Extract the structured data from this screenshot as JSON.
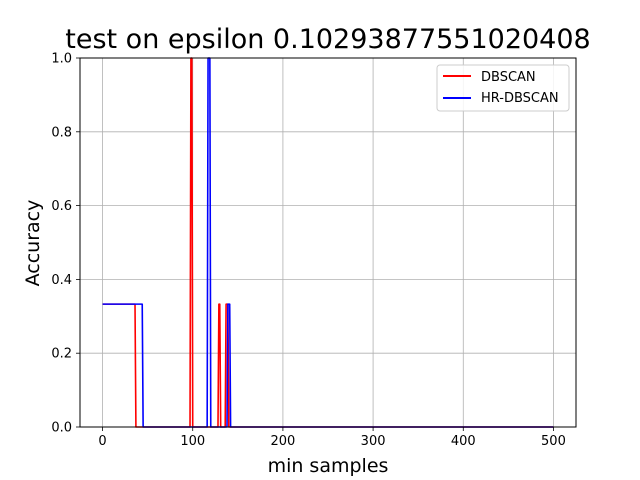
{
  "chart_data": {
    "type": "line",
    "title": "test on epsilon 0.10293877551020408",
    "xlabel": "min samples",
    "ylabel": "Accuracy",
    "xlim": [
      -25,
      525
    ],
    "ylim": [
      0,
      1
    ],
    "xticks": [
      0,
      100,
      200,
      300,
      400,
      500
    ],
    "yticks": [
      0.0,
      0.2,
      0.4,
      0.6,
      0.8,
      1.0
    ],
    "xtick_labels": [
      "0",
      "100",
      "200",
      "300",
      "400",
      "500"
    ],
    "ytick_labels": [
      "0.0",
      "0.2",
      "0.4",
      "0.6",
      "0.8",
      "1.0"
    ],
    "grid": true,
    "legend_position": "top-right",
    "series": [
      {
        "name": "DBSCAN",
        "color": "#ff0000",
        "x": [
          0,
          36,
          37,
          97,
          98,
          99,
          100,
          128,
          129,
          130,
          131,
          136,
          137,
          139,
          140,
          500
        ],
        "y": [
          0.333,
          0.333,
          0,
          0,
          1,
          1,
          0,
          0,
          0.333,
          0.333,
          0,
          0,
          0.333,
          0.333,
          0,
          0
        ]
      },
      {
        "name": "HR-DBSCAN",
        "color": "#0000ff",
        "x": [
          0,
          44,
          45,
          116,
          117,
          119,
          120,
          138,
          139,
          141,
          142,
          500
        ],
        "y": [
          0.333,
          0.333,
          0,
          0,
          1,
          1,
          0,
          0,
          0.333,
          0.333,
          0,
          0
        ]
      }
    ]
  }
}
